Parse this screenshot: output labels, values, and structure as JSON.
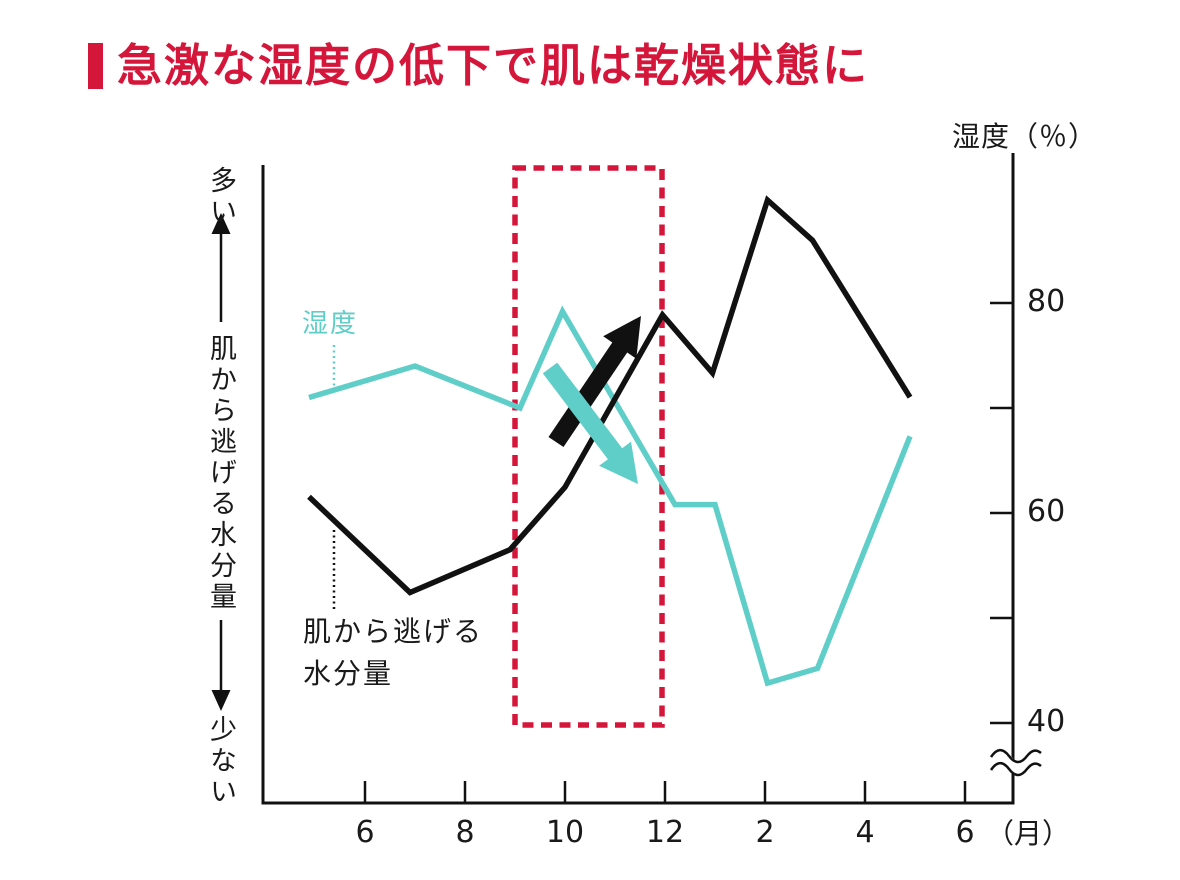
{
  "header": {
    "title": "急激な湿度の低下で肌は乾燥状態に",
    "accent_color": "#d5163b"
  },
  "colors": {
    "humidity": "#5fcec9",
    "moisture": "#111111",
    "highlight": "#d5163b",
    "text": "#1a1a1a"
  },
  "left_axis": {
    "more_label": "多い",
    "axis_label": "肌から逃げる水分量",
    "less_label": "少ない"
  },
  "right_axis_title": "湿度（％）",
  "x_axis_unit": "（月）",
  "series_labels": {
    "humidity": "湿度",
    "moisture_line1": "肌から逃げる",
    "moisture_line2": "水分量"
  },
  "chart_data": {
    "type": "line",
    "title": "急激な湿度の低下で肌は乾燥状態に",
    "x_axis": {
      "unit": "月",
      "note": "month index runs May(5) through next May(17); 13=1月,14=2月,15=3月,16=4月,17=5月,18=6月",
      "ticks": [
        {
          "month": 6,
          "label": "6"
        },
        {
          "month": 8,
          "label": "8"
        },
        {
          "month": 10,
          "label": "10"
        },
        {
          "month": 12,
          "label": "12"
        },
        {
          "month": 14,
          "label": "2"
        },
        {
          "month": 16,
          "label": "4"
        },
        {
          "month": 18,
          "label": "6"
        }
      ]
    },
    "right_y_axis": {
      "label": "湿度（％）",
      "ticks": [
        {
          "pct": 80,
          "label": "80"
        },
        {
          "pct": 70,
          "label": ""
        },
        {
          "pct": 60,
          "label": "60"
        },
        {
          "pct": 50,
          "label": ""
        },
        {
          "pct": 40,
          "label": "40"
        }
      ],
      "axis_break_below": 40
    },
    "left_y_axis": {
      "label": "肌から逃げる水分量",
      "high_end": "多い",
      "low_end": "少ない",
      "scale": "qualitative level 0-100 (no numeric ticks shown)"
    },
    "series": [
      {
        "name": "湿度",
        "axis": "right",
        "color_key": "humidity",
        "points": [
          [
            4.88,
            71
          ],
          [
            7,
            74
          ],
          [
            9.1,
            70
          ],
          [
            9.95,
            79.2
          ],
          [
            12.2,
            60.8
          ],
          [
            13,
            60.8
          ],
          [
            14.05,
            43.8
          ],
          [
            15.05,
            45.2
          ],
          [
            16.9,
            67.3
          ]
        ]
      },
      {
        "name": "肌から逃げる水分量",
        "axis": "left",
        "color_key": "moisture",
        "points": [
          [
            4.88,
            48
          ],
          [
            6.9,
            33
          ],
          [
            8.9,
            39.7
          ],
          [
            10,
            49.5
          ],
          [
            11.95,
            76.5
          ],
          [
            12.95,
            67.4
          ],
          [
            14.05,
            94.5
          ],
          [
            14.95,
            88.2
          ],
          [
            16.9,
            63.6
          ]
        ]
      }
    ],
    "highlight_box": {
      "month_from": 9,
      "month_to": 12
    },
    "annotations": [
      {
        "name": "moisture-rise-arrow",
        "direction": "up-right",
        "color_key": "moisture"
      },
      {
        "name": "humidity-drop-arrow",
        "direction": "down-right",
        "color_key": "humidity"
      }
    ]
  }
}
